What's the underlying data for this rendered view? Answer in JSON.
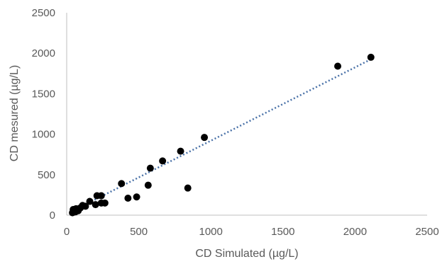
{
  "chart_data": {
    "type": "scatter",
    "title": "",
    "xlabel": "CD Simulated (µg/L)",
    "ylabel": "CD mesured (µg/L)",
    "xlim": [
      0,
      2500
    ],
    "ylim": [
      0,
      2500
    ],
    "x_ticks": [
      "0",
      "500",
      "1000",
      "1500",
      "2000",
      "2500"
    ],
    "y_ticks": [
      "0",
      "500",
      "1000",
      "1500",
      "2000",
      "2500"
    ],
    "grid": false,
    "legend": "none",
    "marker_color": "#000000",
    "trendline": {
      "type": "linear",
      "color": "#4a72a8",
      "style": "dotted",
      "x_start": 40,
      "y_start": 50,
      "x_end": 2110,
      "y_end": 1925
    },
    "points": [
      {
        "x": 40,
        "y": 30
      },
      {
        "x": 45,
        "y": 70
      },
      {
        "x": 60,
        "y": 40
      },
      {
        "x": 65,
        "y": 80
      },
      {
        "x": 80,
        "y": 55
      },
      {
        "x": 95,
        "y": 90
      },
      {
        "x": 110,
        "y": 120
      },
      {
        "x": 130,
        "y": 110
      },
      {
        "x": 160,
        "y": 170
      },
      {
        "x": 200,
        "y": 130
      },
      {
        "x": 210,
        "y": 240
      },
      {
        "x": 240,
        "y": 240
      },
      {
        "x": 240,
        "y": 150
      },
      {
        "x": 265,
        "y": 150
      },
      {
        "x": 380,
        "y": 390
      },
      {
        "x": 425,
        "y": 210
      },
      {
        "x": 485,
        "y": 225
      },
      {
        "x": 565,
        "y": 370
      },
      {
        "x": 580,
        "y": 580
      },
      {
        "x": 665,
        "y": 670
      },
      {
        "x": 790,
        "y": 790
      },
      {
        "x": 840,
        "y": 335
      },
      {
        "x": 955,
        "y": 960
      },
      {
        "x": 1880,
        "y": 1840
      },
      {
        "x": 2110,
        "y": 1950
      }
    ]
  }
}
